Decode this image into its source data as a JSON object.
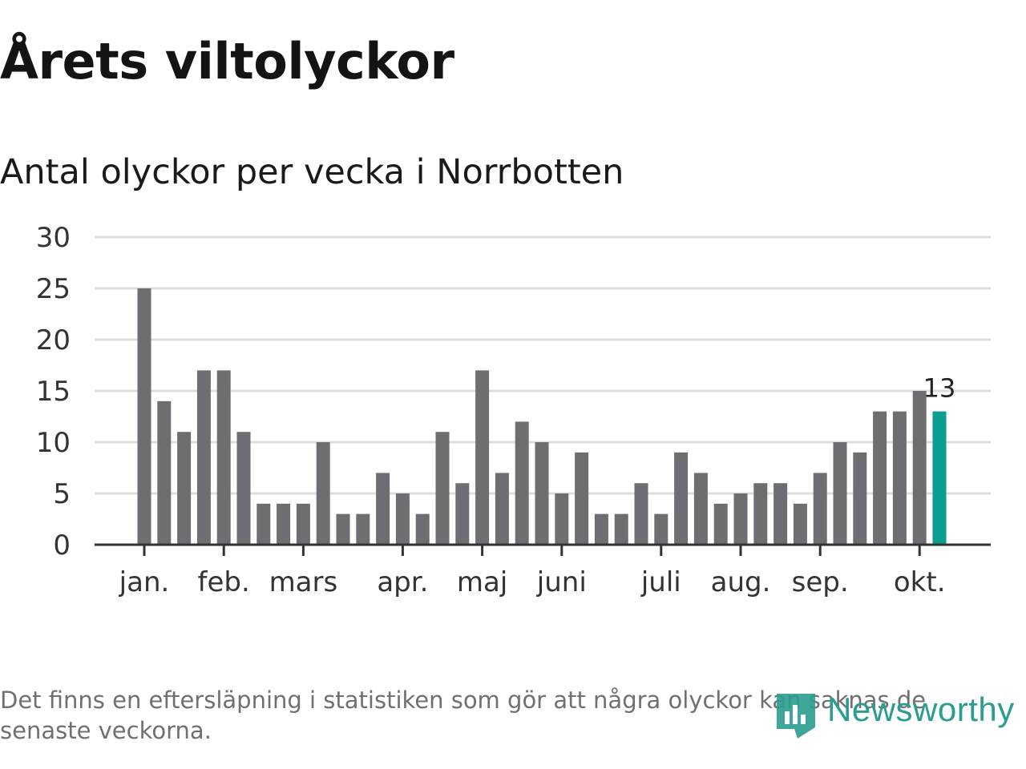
{
  "header": {
    "title": "Årets viltolyckor",
    "subtitle": "Antal olyckor per vecka i Norrbotten"
  },
  "chart_data": {
    "type": "bar",
    "title": "Årets viltolyckor",
    "subtitle": "Antal olyckor per vecka i Norrbotten",
    "xlabel": "",
    "ylabel": "",
    "ylim": [
      0,
      30
    ],
    "yticks": [
      0,
      5,
      10,
      15,
      20,
      25,
      30
    ],
    "grid": true,
    "values": [
      25,
      14,
      11,
      17,
      17,
      11,
      4,
      4,
      4,
      10,
      3,
      3,
      7,
      5,
      3,
      11,
      6,
      17,
      7,
      12,
      10,
      5,
      9,
      3,
      3,
      6,
      3,
      9,
      7,
      4,
      5,
      6,
      6,
      4,
      7,
      10,
      9,
      13,
      13,
      15,
      13
    ],
    "month_ticks": [
      {
        "label": "jan.",
        "index": 0
      },
      {
        "label": "feb.",
        "index": 4
      },
      {
        "label": "mars",
        "index": 8
      },
      {
        "label": "apr.",
        "index": 13
      },
      {
        "label": "maj",
        "index": 17
      },
      {
        "label": "juni",
        "index": 21
      },
      {
        "label": "juli",
        "index": 26
      },
      {
        "label": "aug.",
        "index": 30
      },
      {
        "label": "sep.",
        "index": 34
      },
      {
        "label": "okt.",
        "index": 39
      }
    ],
    "highlight": {
      "index": 40,
      "label": "13"
    },
    "colors": {
      "bar": "#6e6d72",
      "highlight": "#0a9e93",
      "grid": "#dddddd",
      "axis": "#333333"
    }
  },
  "footer": {
    "note": "Det finns en eftersläpning i statistiken som gör att några olyckor kan saknas de senaste veckorna.",
    "brand": "Newsworthy",
    "brand_color": "#2a9d8f"
  }
}
